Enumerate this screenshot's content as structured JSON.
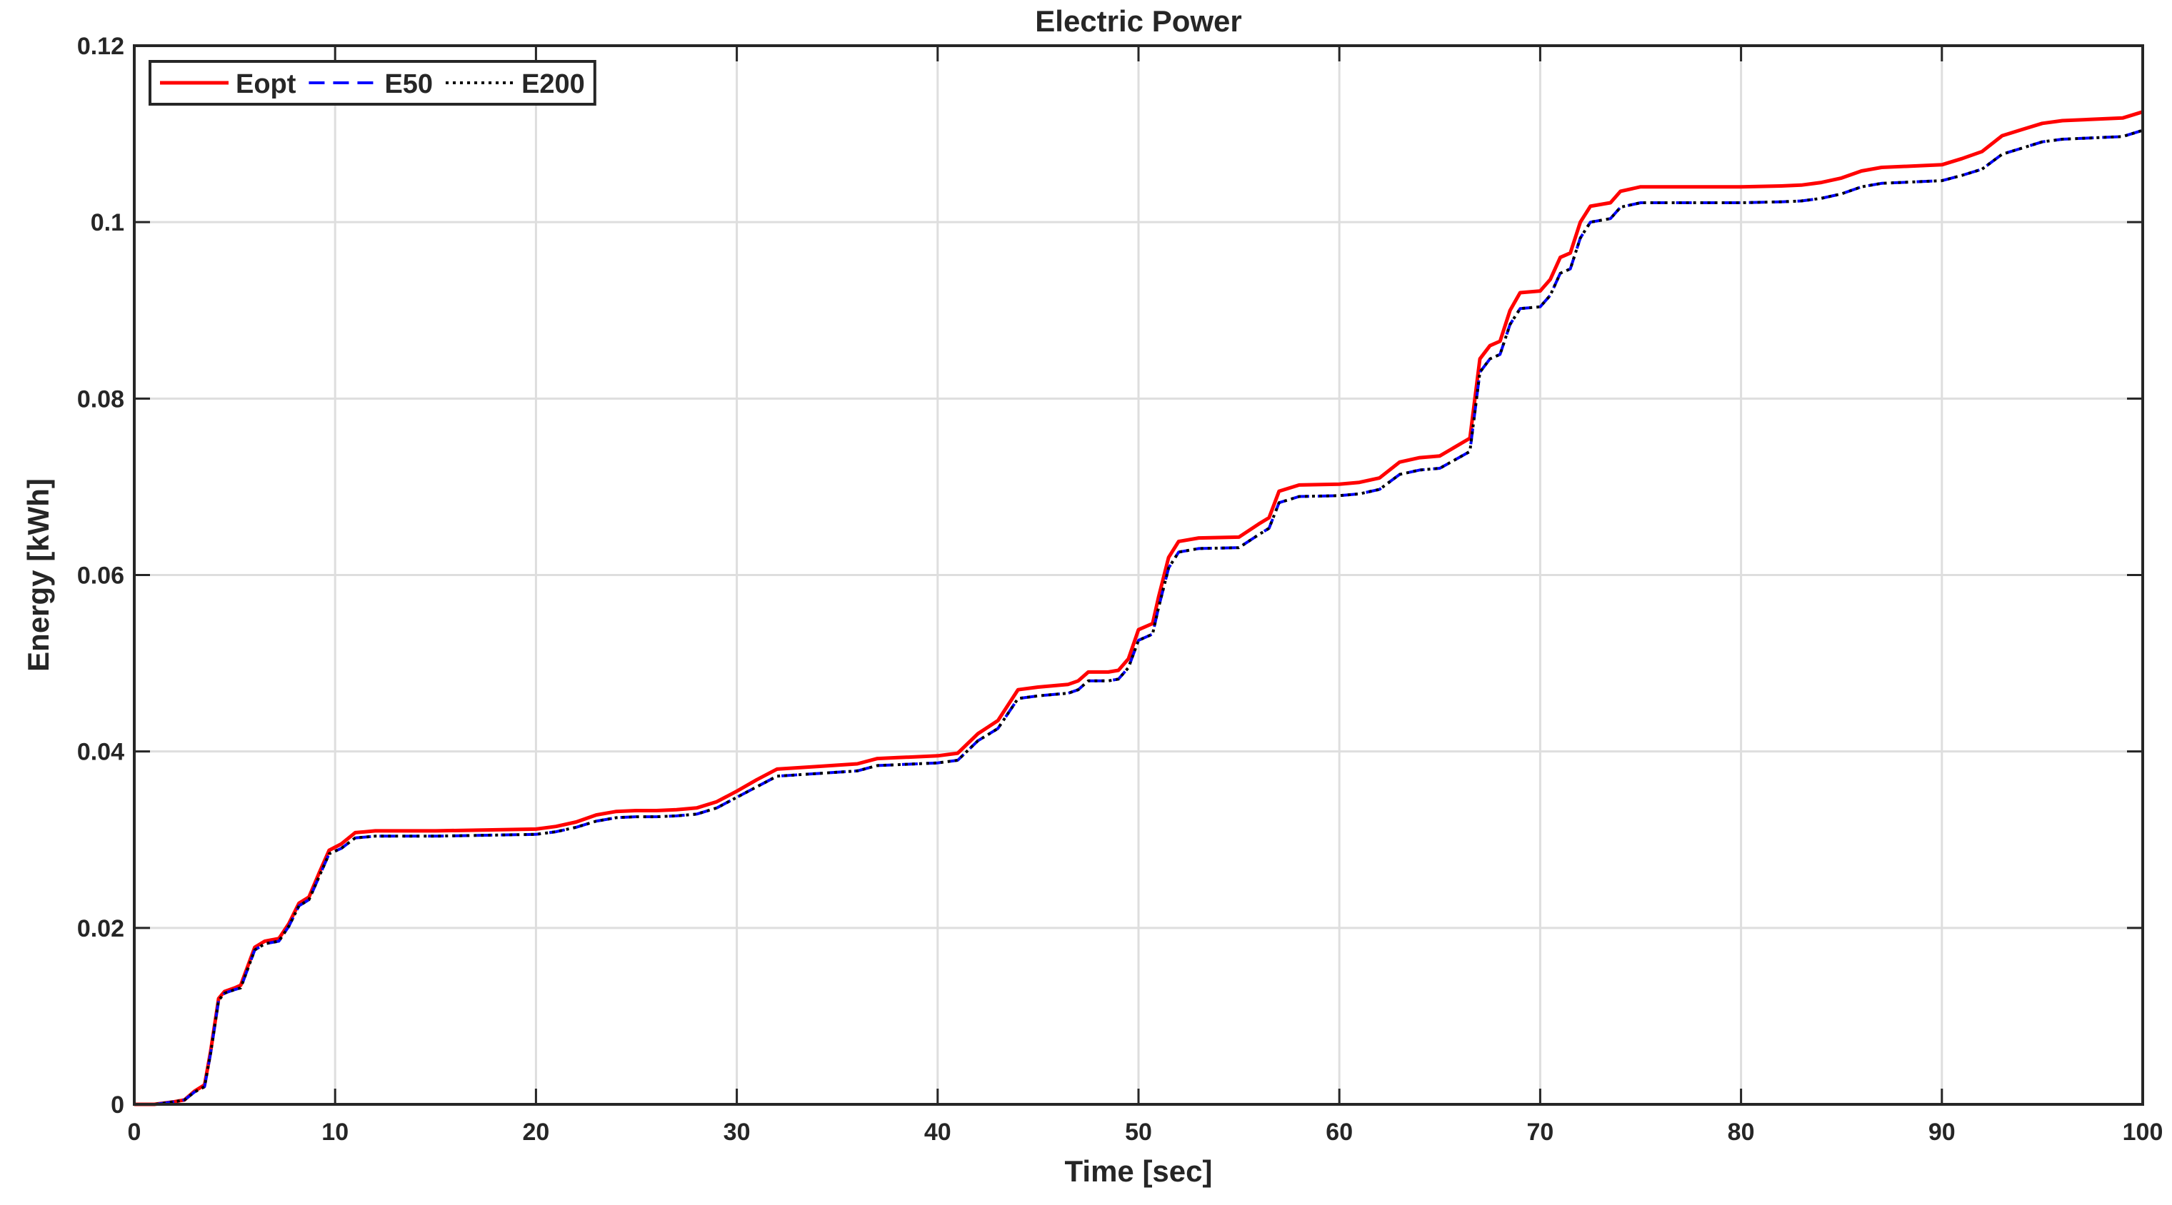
{
  "chart_data": {
    "type": "line",
    "title": "Electric Power",
    "xlabel": "Time [sec]",
    "ylabel": "Energy [kWh]",
    "xlim": [
      0,
      100
    ],
    "ylim": [
      0,
      0.12
    ],
    "xticks": [
      0,
      10,
      20,
      30,
      40,
      50,
      60,
      70,
      80,
      90,
      100
    ],
    "yticks": [
      0,
      0.02,
      0.04,
      0.06,
      0.08,
      0.1,
      0.12
    ],
    "xtick_labels": [
      "0",
      "10",
      "20",
      "30",
      "40",
      "50",
      "60",
      "70",
      "80",
      "90",
      "100"
    ],
    "ytick_labels": [
      "0",
      "0.02",
      "0.04",
      "0.06",
      "0.08",
      "0.1",
      "0.12"
    ],
    "grid": true,
    "legend_position": "top-left",
    "series": [
      {
        "name": "Eopt",
        "color": "#ff0000",
        "style": "solid",
        "x": [
          0,
          1,
          2,
          2.5,
          3,
          3.5,
          3.8,
          4.2,
          4.5,
          5,
          5.3,
          6,
          6.5,
          7.2,
          7.7,
          8.2,
          8.7,
          9.2,
          9.7,
          10.3,
          11,
          12,
          15,
          20,
          21,
          22,
          23,
          24,
          25,
          26,
          27,
          28,
          29,
          30,
          31,
          32,
          34,
          36,
          37,
          38,
          40,
          41,
          42,
          43,
          44,
          45,
          46,
          46.5,
          47,
          47.5,
          48.5,
          49,
          49.5,
          50,
          50.7,
          51,
          51.5,
          52,
          53,
          55,
          56,
          56.5,
          57,
          58,
          60,
          61,
          62,
          63,
          64,
          65,
          66.5,
          67,
          67.5,
          68,
          68.5,
          69,
          70,
          70.5,
          71,
          71.5,
          72,
          72.5,
          73.5,
          74,
          75,
          80,
          82,
          83,
          84,
          85,
          86,
          87,
          90,
          91,
          92,
          93,
          94,
          95,
          96,
          99,
          100
        ],
        "y": [
          0,
          0,
          0.0003,
          0.0005,
          0.0015,
          0.0022,
          0.006,
          0.012,
          0.0128,
          0.0132,
          0.0135,
          0.0178,
          0.0185,
          0.0188,
          0.0205,
          0.0228,
          0.0235,
          0.0262,
          0.0288,
          0.0295,
          0.0308,
          0.031,
          0.031,
          0.0312,
          0.0315,
          0.032,
          0.0328,
          0.0332,
          0.0333,
          0.0333,
          0.0334,
          0.0336,
          0.0343,
          0.0355,
          0.0368,
          0.038,
          0.0383,
          0.0386,
          0.0392,
          0.0393,
          0.0395,
          0.0398,
          0.042,
          0.0435,
          0.047,
          0.0473,
          0.0475,
          0.0476,
          0.048,
          0.049,
          0.049,
          0.0492,
          0.0505,
          0.0538,
          0.0545,
          0.0575,
          0.062,
          0.0638,
          0.0642,
          0.0643,
          0.0658,
          0.0665,
          0.0695,
          0.0702,
          0.0703,
          0.0705,
          0.071,
          0.0728,
          0.0733,
          0.0735,
          0.0755,
          0.0845,
          0.086,
          0.0865,
          0.09,
          0.092,
          0.0922,
          0.0935,
          0.096,
          0.0965,
          0.1,
          0.1018,
          0.1022,
          0.1035,
          0.104,
          0.104,
          0.1041,
          0.1042,
          0.1045,
          0.105,
          0.1058,
          0.1062,
          0.1065,
          0.1072,
          0.108,
          0.1098,
          0.1105,
          0.1112,
          0.1115,
          0.1118,
          0.1125
        ]
      },
      {
        "name": "E50",
        "color": "#0000ff",
        "style": "dashed",
        "x": [
          0,
          1,
          2,
          2.5,
          3,
          3.5,
          3.8,
          4.2,
          4.5,
          5,
          5.3,
          6,
          6.5,
          7.2,
          7.7,
          8.2,
          8.7,
          9.2,
          9.7,
          10.3,
          11,
          12,
          15,
          20,
          21,
          22,
          23,
          24,
          25,
          26,
          27,
          28,
          29,
          30,
          31,
          32,
          34,
          36,
          37,
          38,
          40,
          41,
          42,
          43,
          44,
          45,
          46,
          46.5,
          47,
          47.5,
          48.5,
          49,
          49.5,
          50,
          50.7,
          51,
          51.5,
          52,
          53,
          55,
          56,
          56.5,
          57,
          58,
          60,
          61,
          62,
          63,
          64,
          65,
          66.5,
          67,
          67.5,
          68,
          68.5,
          69,
          70,
          70.5,
          71,
          71.5,
          72,
          72.5,
          73.5,
          74,
          75,
          80,
          82,
          83,
          84,
          85,
          86,
          87,
          90,
          91,
          92,
          93,
          94,
          95,
          96,
          99,
          100
        ],
        "y": [
          0,
          0,
          0.0003,
          0.0005,
          0.0014,
          0.002,
          0.0058,
          0.0118,
          0.0126,
          0.013,
          0.0132,
          0.0175,
          0.0182,
          0.0185,
          0.0202,
          0.0225,
          0.0232,
          0.0258,
          0.0284,
          0.029,
          0.0302,
          0.0304,
          0.0304,
          0.0306,
          0.0309,
          0.0314,
          0.0321,
          0.0325,
          0.0326,
          0.0326,
          0.0327,
          0.0329,
          0.0336,
          0.0348,
          0.036,
          0.0372,
          0.0375,
          0.0378,
          0.0384,
          0.0385,
          0.0387,
          0.039,
          0.0412,
          0.0426,
          0.046,
          0.0463,
          0.0465,
          0.0466,
          0.047,
          0.048,
          0.048,
          0.0482,
          0.0495,
          0.0526,
          0.0533,
          0.0563,
          0.0608,
          0.0626,
          0.063,
          0.0631,
          0.0646,
          0.0653,
          0.0682,
          0.0689,
          0.069,
          0.0692,
          0.0697,
          0.0714,
          0.0719,
          0.0721,
          0.074,
          0.083,
          0.0845,
          0.085,
          0.0884,
          0.0902,
          0.0904,
          0.0917,
          0.0942,
          0.0947,
          0.0982,
          0.1,
          0.1004,
          0.1017,
          0.1022,
          0.1022,
          0.1023,
          0.1024,
          0.1027,
          0.1032,
          0.104,
          0.1044,
          0.1047,
          0.1053,
          0.106,
          0.1077,
          0.1084,
          0.1091,
          0.1094,
          0.1097,
          0.1104
        ]
      },
      {
        "name": "E200",
        "color": "#000000",
        "style": "dotted",
        "x": [
          0,
          1,
          2,
          2.5,
          3,
          3.5,
          3.8,
          4.2,
          4.5,
          5,
          5.3,
          6,
          6.5,
          7.2,
          7.7,
          8.2,
          8.7,
          9.2,
          9.7,
          10.3,
          11,
          12,
          15,
          20,
          21,
          22,
          23,
          24,
          25,
          26,
          27,
          28,
          29,
          30,
          31,
          32,
          34,
          36,
          37,
          38,
          40,
          41,
          42,
          43,
          44,
          45,
          46,
          46.5,
          47,
          47.5,
          48.5,
          49,
          49.5,
          50,
          50.7,
          51,
          51.5,
          52,
          53,
          55,
          56,
          56.5,
          57,
          58,
          60,
          61,
          62,
          63,
          64,
          65,
          66.5,
          67,
          67.5,
          68,
          68.5,
          69,
          70,
          70.5,
          71,
          71.5,
          72,
          72.5,
          73.5,
          74,
          75,
          80,
          82,
          83,
          84,
          85,
          86,
          87,
          90,
          91,
          92,
          93,
          94,
          95,
          96,
          99,
          100
        ],
        "y": [
          0,
          0,
          0.0003,
          0.0005,
          0.0014,
          0.002,
          0.0058,
          0.0118,
          0.0126,
          0.013,
          0.0132,
          0.0175,
          0.0182,
          0.0185,
          0.0202,
          0.0225,
          0.0232,
          0.0258,
          0.0284,
          0.029,
          0.0302,
          0.0304,
          0.0304,
          0.0306,
          0.0309,
          0.0314,
          0.0321,
          0.0325,
          0.0326,
          0.0326,
          0.0327,
          0.0329,
          0.0336,
          0.0348,
          0.036,
          0.0372,
          0.0375,
          0.0378,
          0.0384,
          0.0385,
          0.0387,
          0.039,
          0.0412,
          0.0426,
          0.046,
          0.0463,
          0.0465,
          0.0466,
          0.047,
          0.048,
          0.048,
          0.0482,
          0.0495,
          0.0526,
          0.0533,
          0.0563,
          0.0608,
          0.0626,
          0.063,
          0.0631,
          0.0646,
          0.0653,
          0.0682,
          0.0689,
          0.069,
          0.0692,
          0.0697,
          0.0714,
          0.0719,
          0.0721,
          0.074,
          0.083,
          0.0845,
          0.085,
          0.0884,
          0.0902,
          0.0904,
          0.0917,
          0.0942,
          0.0947,
          0.0982,
          0.1,
          0.1004,
          0.1017,
          0.1022,
          0.1022,
          0.1023,
          0.1024,
          0.1027,
          0.1032,
          0.104,
          0.1044,
          0.1047,
          0.1053,
          0.106,
          0.1077,
          0.1084,
          0.1091,
          0.1094,
          0.1097,
          0.1104
        ]
      }
    ]
  }
}
